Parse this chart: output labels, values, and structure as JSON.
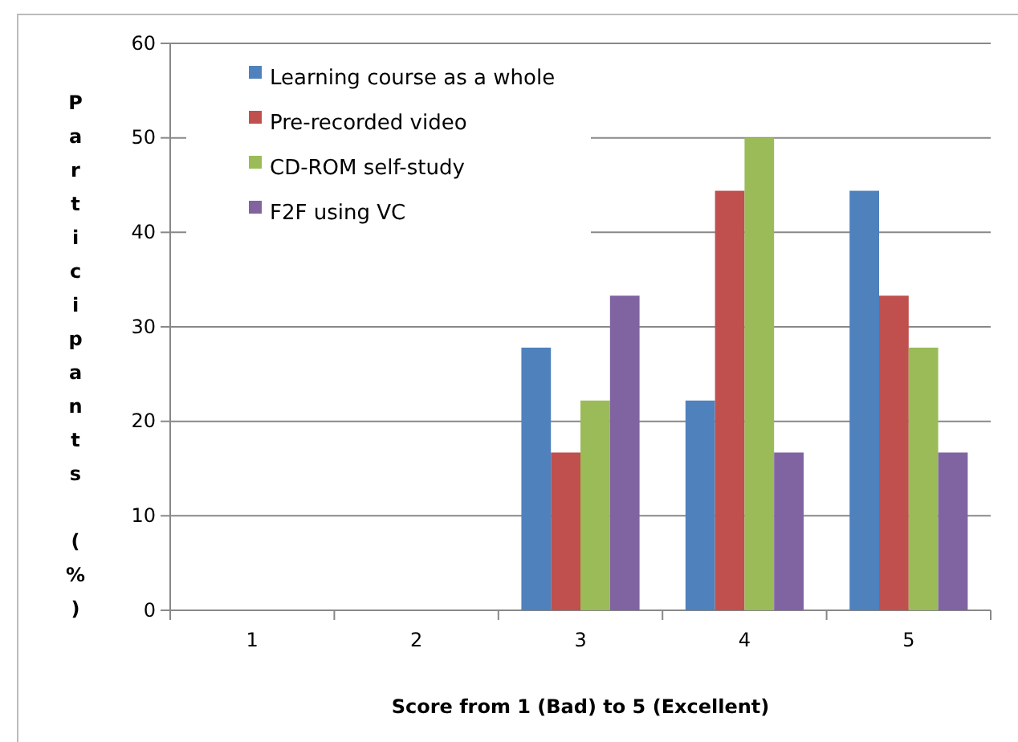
{
  "chart_data": {
    "type": "bar",
    "xlabel": "Score from 1 (Bad) to 5 (Excellent)",
    "ylabel": "Participants (%)",
    "categories": [
      "1",
      "2",
      "3",
      "4",
      "5"
    ],
    "series": [
      {
        "name": "Learning course as a whole",
        "color": "#4f81bd",
        "values": [
          0,
          0,
          27.8,
          22.2,
          44.4
        ]
      },
      {
        "name": "Pre-recorded video",
        "color": "#c0504d",
        "values": [
          0,
          0,
          16.7,
          44.4,
          33.3
        ]
      },
      {
        "name": "CD-ROM self-study",
        "color": "#9bbb59",
        "values": [
          0,
          0,
          22.2,
          50,
          27.8
        ]
      },
      {
        "name": "F2F using VC",
        "color": "#8064a2",
        "values": [
          0,
          0,
          33.3,
          16.7,
          16.7
        ]
      }
    ],
    "ylim": [
      0,
      60
    ],
    "yticks": [
      0,
      10,
      20,
      30,
      40,
      50,
      60
    ],
    "grid": "y",
    "legend": "top left"
  }
}
